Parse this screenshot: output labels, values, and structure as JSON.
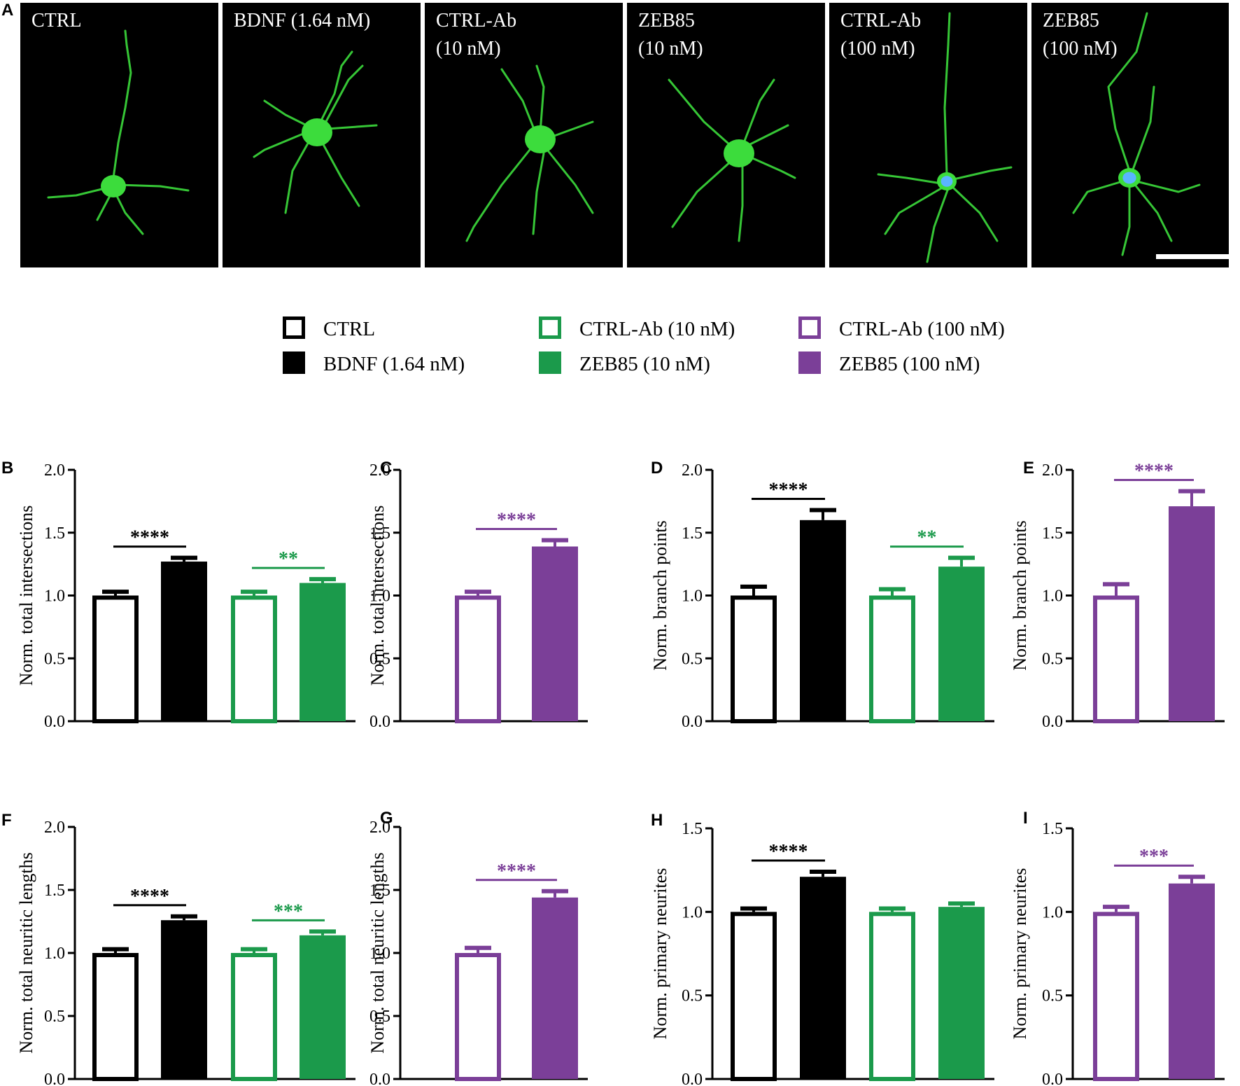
{
  "panel_a": {
    "letter": "A",
    "images": [
      {
        "label_lines": [
          "CTRL"
        ],
        "soma_color": "green",
        "depicts": "neuron-ctrl"
      },
      {
        "label_lines": [
          "BDNF (1.64 nM)"
        ],
        "soma_color": "green",
        "depicts": "neuron-bdnf"
      },
      {
        "label_lines": [
          "CTRL-Ab",
          "(10 nM)"
        ],
        "soma_color": "green",
        "depicts": "neuron-ctrl-ab-10"
      },
      {
        "label_lines": [
          "ZEB85",
          "(10 nM)"
        ],
        "soma_color": "green",
        "depicts": "neuron-zeb85-10"
      },
      {
        "label_lines": [
          "CTRL-Ab",
          "(100 nM)"
        ],
        "soma_color": "blue",
        "depicts": "neuron-ctrl-ab-100"
      },
      {
        "label_lines": [
          "ZEB85",
          "(100 nM)"
        ],
        "soma_color": "blue",
        "depicts": "neuron-zeb85-100"
      }
    ],
    "scale_bar": true
  },
  "legend": [
    {
      "label": "CTRL",
      "color": "#000000",
      "filled": false
    },
    {
      "label": "BDNF (1.64 nM)",
      "color": "#000000",
      "filled": true
    },
    {
      "label": "CTRL-Ab (10 nM)",
      "color": "#1b9a4b",
      "filled": false
    },
    {
      "label": "ZEB85 (10 nM)",
      "color": "#1b9a4b",
      "filled": true
    },
    {
      "label": "CTRL-Ab (100 nM)",
      "color": "#7b3f98",
      "filled": false
    },
    {
      "label": "ZEB85 (100 nM)",
      "color": "#7b3f98",
      "filled": true
    }
  ],
  "colors": {
    "black": "#000000",
    "green": "#1b9a4b",
    "purple": "#7b3f98",
    "neuron": "#3cdc3c",
    "nucleus": "#5ab4ff"
  },
  "chart_data": [
    {
      "panel": "B",
      "type": "bar",
      "ylabel": "Norm. total intersections",
      "ylim": [
        0,
        2.0
      ],
      "ticks": [
        "0.0",
        "0.5",
        "1.0",
        "1.5",
        "2.0"
      ],
      "bars": [
        {
          "group": "CTRL",
          "value": 1.0,
          "error": 0.03,
          "color": "black",
          "filled": false
        },
        {
          "group": "BDNF (1.64 nM)",
          "value": 1.27,
          "error": 0.03,
          "color": "black",
          "filled": true
        },
        {
          "group": "CTRL-Ab (10 nM)",
          "value": 1.0,
          "error": 0.03,
          "color": "green",
          "filled": false
        },
        {
          "group": "ZEB85 (10 nM)",
          "value": 1.1,
          "error": 0.03,
          "color": "green",
          "filled": true
        }
      ],
      "significance": [
        {
          "between": [
            0,
            1
          ],
          "label": "****",
          "color": "black"
        },
        {
          "between": [
            2,
            3
          ],
          "label": "**",
          "color": "green"
        }
      ]
    },
    {
      "panel": "C",
      "type": "bar",
      "ylabel": "Norm. total intersections",
      "ylim": [
        0,
        2.0
      ],
      "ticks": [
        "0.0",
        "0.5",
        "1.0",
        "1.5",
        "2.0"
      ],
      "bars": [
        {
          "group": "CTRL-Ab (100 nM)",
          "value": 1.0,
          "error": 0.03,
          "color": "purple",
          "filled": false
        },
        {
          "group": "ZEB85 (100 nM)",
          "value": 1.39,
          "error": 0.05,
          "color": "purple",
          "filled": true
        }
      ],
      "significance": [
        {
          "between": [
            0,
            1
          ],
          "label": "****",
          "color": "purple"
        }
      ]
    },
    {
      "panel": "D",
      "type": "bar",
      "ylabel": "Norm. branch points",
      "ylim": [
        0,
        2.0
      ],
      "ticks": [
        "0.0",
        "0.5",
        "1.0",
        "1.5",
        "2.0"
      ],
      "bars": [
        {
          "group": "CTRL",
          "value": 1.0,
          "error": 0.07,
          "color": "black",
          "filled": false
        },
        {
          "group": "BDNF (1.64 nM)",
          "value": 1.6,
          "error": 0.08,
          "color": "black",
          "filled": true
        },
        {
          "group": "CTRL-Ab (10 nM)",
          "value": 1.0,
          "error": 0.05,
          "color": "green",
          "filled": false
        },
        {
          "group": "ZEB85 (10 nM)",
          "value": 1.23,
          "error": 0.07,
          "color": "green",
          "filled": true
        }
      ],
      "significance": [
        {
          "between": [
            0,
            1
          ],
          "label": "****",
          "color": "black"
        },
        {
          "between": [
            2,
            3
          ],
          "label": "**",
          "color": "green"
        }
      ]
    },
    {
      "panel": "E",
      "type": "bar",
      "ylabel": "Norm. branch points",
      "ylim": [
        0,
        2.0
      ],
      "ticks": [
        "0.0",
        "0.5",
        "1.0",
        "1.5",
        "2.0"
      ],
      "bars": [
        {
          "group": "CTRL-Ab (100 nM)",
          "value": 1.0,
          "error": 0.09,
          "color": "purple",
          "filled": false
        },
        {
          "group": "ZEB85 (100 nM)",
          "value": 1.71,
          "error": 0.12,
          "color": "purple",
          "filled": true
        }
      ],
      "significance": [
        {
          "between": [
            0,
            1
          ],
          "label": "****",
          "color": "purple"
        }
      ]
    },
    {
      "panel": "F",
      "type": "bar",
      "ylabel": "Norm. total neuritic lengths",
      "ylim": [
        0,
        2.0
      ],
      "ticks": [
        "0.0",
        "0.5",
        "1.0",
        "1.5",
        "2.0"
      ],
      "bars": [
        {
          "group": "CTRL",
          "value": 1.0,
          "error": 0.03,
          "color": "black",
          "filled": false
        },
        {
          "group": "BDNF (1.64 nM)",
          "value": 1.26,
          "error": 0.03,
          "color": "black",
          "filled": true
        },
        {
          "group": "CTRL-Ab (10 nM)",
          "value": 1.0,
          "error": 0.03,
          "color": "green",
          "filled": false
        },
        {
          "group": "ZEB85 (10 nM)",
          "value": 1.14,
          "error": 0.03,
          "color": "green",
          "filled": true
        }
      ],
      "significance": [
        {
          "between": [
            0,
            1
          ],
          "label": "****",
          "color": "black"
        },
        {
          "between": [
            2,
            3
          ],
          "label": "***",
          "color": "green"
        }
      ]
    },
    {
      "panel": "G",
      "type": "bar",
      "ylabel": "Norm. total neuritic lengths",
      "ylim": [
        0,
        2.0
      ],
      "ticks": [
        "0.0",
        "0.5",
        "1.0",
        "1.5",
        "2.0"
      ],
      "bars": [
        {
          "group": "CTRL-Ab (100 nM)",
          "value": 1.0,
          "error": 0.04,
          "color": "purple",
          "filled": false
        },
        {
          "group": "ZEB85 (100 nM)",
          "value": 1.44,
          "error": 0.05,
          "color": "purple",
          "filled": true
        }
      ],
      "significance": [
        {
          "between": [
            0,
            1
          ],
          "label": "****",
          "color": "purple"
        }
      ]
    },
    {
      "panel": "H",
      "type": "bar",
      "ylabel": "Norm. primary neurites",
      "ylim": [
        0,
        1.5
      ],
      "ticks": [
        "0.0",
        "0.5",
        "1.0",
        "1.5"
      ],
      "bars": [
        {
          "group": "CTRL",
          "value": 1.0,
          "error": 0.02,
          "color": "black",
          "filled": false
        },
        {
          "group": "BDNF (1.64 nM)",
          "value": 1.21,
          "error": 0.03,
          "color": "black",
          "filled": true
        },
        {
          "group": "CTRL-Ab (10 nM)",
          "value": 1.0,
          "error": 0.02,
          "color": "green",
          "filled": false
        },
        {
          "group": "ZEB85 (10 nM)",
          "value": 1.03,
          "error": 0.02,
          "color": "green",
          "filled": true
        }
      ],
      "significance": [
        {
          "between": [
            0,
            1
          ],
          "label": "****",
          "color": "black"
        }
      ]
    },
    {
      "panel": "I",
      "type": "bar",
      "ylabel": "Norm. primary neurites",
      "ylim": [
        0,
        1.5
      ],
      "ticks": [
        "0.0",
        "0.5",
        "1.0",
        "1.5"
      ],
      "bars": [
        {
          "group": "CTRL-Ab (100 nM)",
          "value": 1.0,
          "error": 0.03,
          "color": "purple",
          "filled": false
        },
        {
          "group": "ZEB85 (100 nM)",
          "value": 1.17,
          "error": 0.04,
          "color": "purple",
          "filled": true
        }
      ],
      "significance": [
        {
          "between": [
            0,
            1
          ],
          "label": "***",
          "color": "purple"
        }
      ]
    }
  ]
}
